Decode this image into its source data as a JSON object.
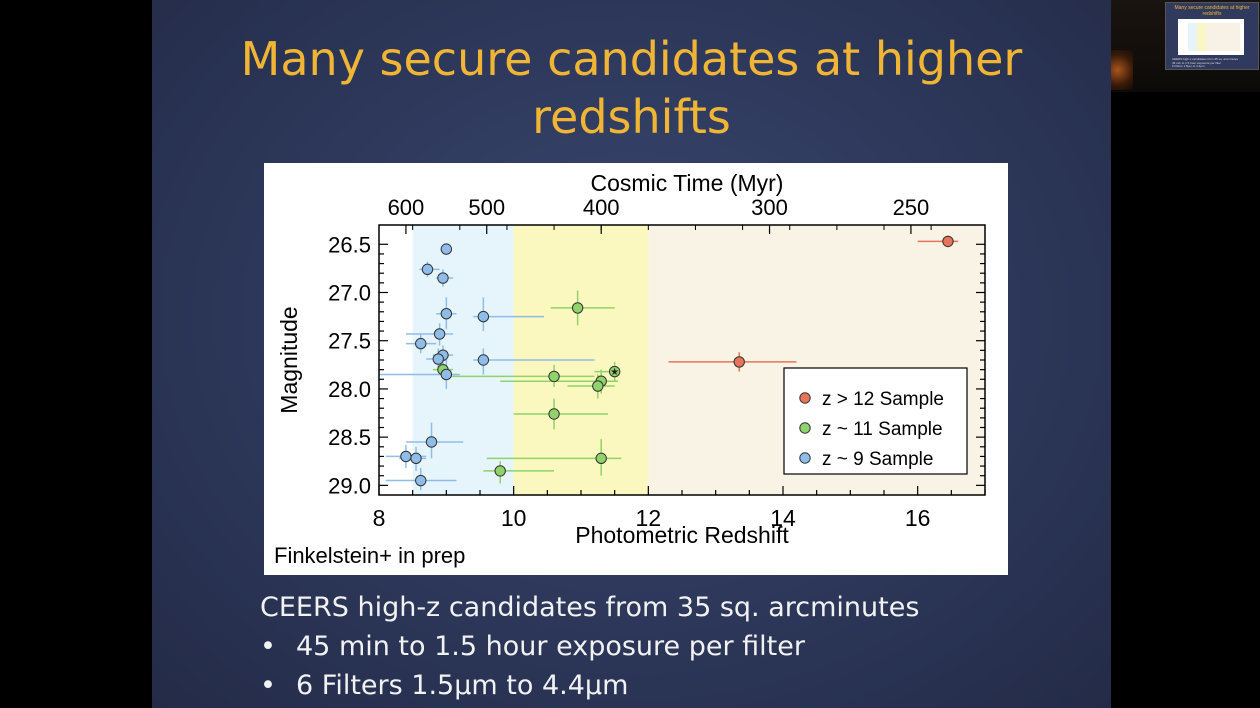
{
  "slide": {
    "title_line1": "Many secure candidates at higher",
    "title_line2": "redshifts",
    "bullets": {
      "intro": "CEERS high-z candidates from 35 sq. arcminutes",
      "items": [
        "45 min to 1.5 hour exposure per filter",
        "6 Filters 1.5μm to 4.4μm"
      ],
      "dot": "•"
    }
  },
  "thumbnail": {
    "title": "Many secure candidates at higher redshifts",
    "line1": "CEERS high-z candidates from 35 sq. arcminutes",
    "line2": "45 min to 1.5 hour exposure per filter",
    "line3": "6 Filters 1.5μm to 4.4μm"
  },
  "chart_data": {
    "type": "scatter",
    "xlabel": "Photometric Redshift",
    "ylabel": "Magnitude",
    "top_axis_label": "Cosmic Time (Myr)",
    "credit": "Finkelstein+ in prep",
    "xlim": [
      8,
      17
    ],
    "ylim": [
      29.1,
      26.3
    ],
    "x_ticks": [
      8,
      10,
      12,
      14,
      16
    ],
    "y_ticks": [
      26.5,
      27.0,
      27.5,
      28.0,
      28.5,
      29.0
    ],
    "y_tick_labels": [
      "26.5",
      "27.0",
      "27.5",
      "28.0",
      "28.5",
      "29.0"
    ],
    "top_ticks": [
      {
        "label": "600",
        "z": 8.4
      },
      {
        "label": "500",
        "z": 9.6
      },
      {
        "label": "400",
        "z": 11.3
      },
      {
        "label": "300",
        "z": 13.8
      },
      {
        "label": "250",
        "z": 15.9
      }
    ],
    "bands": [
      {
        "x0": 8.5,
        "x1": 10.0,
        "color": "#e6f4fb"
      },
      {
        "x0": 10.0,
        "x1": 12.0,
        "color": "#fbf8bf"
      },
      {
        "x0": 12.0,
        "x1": 17.0,
        "color": "#f9f3e5"
      }
    ],
    "legend_position": "lower-right",
    "series": [
      {
        "name": "z > 12 Sample",
        "color": "#e6735a",
        "points": [
          {
            "x": 16.45,
            "y": 26.47,
            "xlo": 16.0,
            "xhi": 16.6,
            "ylo": 26.41,
            "yhi": 26.53
          },
          {
            "x": 13.35,
            "y": 27.72,
            "xlo": 12.3,
            "xhi": 14.2,
            "ylo": 27.62,
            "yhi": 27.82
          }
        ]
      },
      {
        "name": "z ~ 11 Sample",
        "color": "#8fd36a",
        "points": [
          {
            "x": 10.95,
            "y": 27.16,
            "xlo": 10.55,
            "xhi": 11.5,
            "ylo": 26.98,
            "yhi": 27.34
          },
          {
            "x": 10.6,
            "y": 27.87,
            "xlo": 9.0,
            "xhi": 11.2,
            "ylo": 27.75,
            "yhi": 27.98
          },
          {
            "x": 11.3,
            "y": 27.92,
            "xlo": 9.8,
            "xhi": 11.55,
            "ylo": 27.8,
            "yhi": 28.05
          },
          {
            "x": 11.25,
            "y": 27.97,
            "xlo": 10.8,
            "xhi": 11.5,
            "ylo": 27.85,
            "yhi": 28.1
          },
          {
            "x": 10.6,
            "y": 28.26,
            "xlo": 10.0,
            "xhi": 11.4,
            "ylo": 28.1,
            "yhi": 28.42
          },
          {
            "x": 11.3,
            "y": 28.72,
            "xlo": 9.6,
            "xhi": 11.6,
            "ylo": 28.52,
            "yhi": 28.9
          },
          {
            "x": 9.8,
            "y": 28.85,
            "xlo": 9.55,
            "xhi": 10.6,
            "ylo": 28.75,
            "yhi": 28.98
          },
          {
            "x": 8.95,
            "y": 27.8,
            "xlo": 8.8,
            "xhi": 9.1,
            "ylo": 27.7,
            "yhi": 27.9
          }
        ]
      },
      {
        "name": "z ~ 9 Sample",
        "color": "#8fbdea",
        "points": [
          {
            "x": 9.0,
            "y": 26.55,
            "xlo": 8.95,
            "xhi": 9.05,
            "ylo": 26.49,
            "yhi": 26.61
          },
          {
            "x": 8.72,
            "y": 26.76,
            "xlo": 8.6,
            "xhi": 8.9,
            "ylo": 26.68,
            "yhi": 26.84
          },
          {
            "x": 8.95,
            "y": 26.85,
            "xlo": 8.85,
            "xhi": 9.1,
            "ylo": 26.76,
            "yhi": 26.94
          },
          {
            "x": 9.0,
            "y": 27.22,
            "xlo": 8.85,
            "xhi": 9.15,
            "ylo": 27.05,
            "yhi": 27.38
          },
          {
            "x": 9.55,
            "y": 27.25,
            "xlo": 9.4,
            "xhi": 10.45,
            "ylo": 27.05,
            "yhi": 27.4
          },
          {
            "x": 8.9,
            "y": 27.43,
            "xlo": 8.4,
            "xhi": 9.1,
            "ylo": 27.32,
            "yhi": 27.55
          },
          {
            "x": 8.62,
            "y": 27.53,
            "xlo": 8.4,
            "xhi": 8.85,
            "ylo": 27.43,
            "yhi": 27.63
          },
          {
            "x": 8.95,
            "y": 27.65,
            "xlo": 8.8,
            "xhi": 9.1,
            "ylo": 27.55,
            "yhi": 27.75
          },
          {
            "x": 8.88,
            "y": 27.69,
            "xlo": 8.7,
            "xhi": 9.0,
            "ylo": 27.58,
            "yhi": 27.8
          },
          {
            "x": 9.55,
            "y": 27.7,
            "xlo": 9.4,
            "xhi": 11.2,
            "ylo": 27.58,
            "yhi": 27.85
          },
          {
            "x": 9.0,
            "y": 27.85,
            "xlo": 8.0,
            "xhi": 9.2,
            "ylo": 27.7,
            "yhi": 28.0
          },
          {
            "x": 8.78,
            "y": 28.55,
            "xlo": 8.4,
            "xhi": 9.25,
            "ylo": 28.35,
            "yhi": 28.72
          },
          {
            "x": 8.4,
            "y": 28.7,
            "xlo": 8.1,
            "xhi": 8.7,
            "ylo": 28.58,
            "yhi": 28.82
          },
          {
            "x": 8.55,
            "y": 28.72,
            "xlo": 8.3,
            "xhi": 8.7,
            "ylo": 28.6,
            "yhi": 28.85
          },
          {
            "x": 8.62,
            "y": 28.95,
            "xlo": 8.1,
            "xhi": 9.15,
            "ylo": 28.82,
            "yhi": 29.05
          }
        ]
      }
    ],
    "star_marker": {
      "x": 11.5,
      "y": 27.82,
      "xlo": 11.2,
      "xhi": 11.55,
      "ylo": 27.72,
      "yhi": 27.92
    }
  },
  "colors": {
    "title": "#f0b534",
    "bullet_text": "#f2f2f2",
    "axis": "#000000"
  }
}
